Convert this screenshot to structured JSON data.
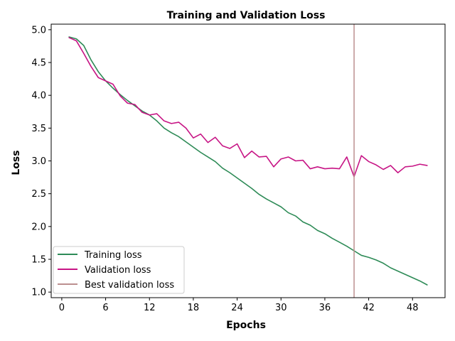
{
  "chart_data": {
    "type": "line",
    "title": "Training and Validation Loss",
    "xlabel": "Epochs",
    "ylabel": "Loss",
    "xlim": [
      -1.45,
      52.45
    ],
    "ylim": [
      0.915,
      5.085
    ],
    "xticks": [
      0,
      6,
      12,
      18,
      24,
      30,
      36,
      42,
      48
    ],
    "xtick_labels": [
      "0",
      "6",
      "12",
      "18",
      "24",
      "30",
      "36",
      "42",
      "48"
    ],
    "yticks": [
      1.0,
      1.5,
      2.0,
      2.5,
      3.0,
      3.5,
      4.0,
      4.5,
      5.0
    ],
    "ytick_labels": [
      "1.0",
      "1.5",
      "2.0",
      "2.5",
      "3.0",
      "3.5",
      "4.0",
      "4.5",
      "5.0"
    ],
    "grid": false,
    "legend_position": "lower-left",
    "x": [
      1,
      2,
      3,
      4,
      5,
      6,
      7,
      8,
      9,
      10,
      11,
      12,
      13,
      14,
      15,
      16,
      17,
      18,
      19,
      20,
      21,
      22,
      23,
      24,
      25,
      26,
      27,
      28,
      29,
      30,
      31,
      32,
      33,
      34,
      35,
      36,
      37,
      38,
      39,
      40,
      41,
      42,
      43,
      44,
      45,
      46,
      47,
      48,
      49,
      50
    ],
    "series": [
      {
        "name": "Training loss",
        "color": "#2e8b57",
        "values": [
          4.89,
          4.86,
          4.76,
          4.54,
          4.36,
          4.22,
          4.11,
          4.01,
          3.92,
          3.84,
          3.76,
          3.7,
          3.61,
          3.5,
          3.43,
          3.37,
          3.29,
          3.21,
          3.13,
          3.06,
          2.99,
          2.89,
          2.82,
          2.74,
          2.66,
          2.58,
          2.49,
          2.42,
          2.36,
          2.3,
          2.21,
          2.16,
          2.07,
          2.02,
          1.94,
          1.89,
          1.82,
          1.76,
          1.7,
          1.63,
          1.56,
          1.53,
          1.49,
          1.44,
          1.37,
          1.32,
          1.27,
          1.22,
          1.17,
          1.11
        ]
      },
      {
        "name": "Validation loss",
        "color": "#c71585",
        "values": [
          4.88,
          4.83,
          4.64,
          4.44,
          4.27,
          4.22,
          4.17,
          3.99,
          3.88,
          3.86,
          3.74,
          3.7,
          3.72,
          3.61,
          3.57,
          3.59,
          3.5,
          3.35,
          3.41,
          3.28,
          3.36,
          3.23,
          3.19,
          3.26,
          3.05,
          3.15,
          3.06,
          3.07,
          2.91,
          3.03,
          3.06,
          3.0,
          3.01,
          2.88,
          2.91,
          2.88,
          2.89,
          2.88,
          3.06,
          2.76,
          3.08,
          2.99,
          2.94,
          2.87,
          2.93,
          2.82,
          2.91,
          2.92,
          2.95,
          2.93
        ]
      }
    ],
    "best_validation": {
      "name": "Best validation loss",
      "epoch": 40,
      "color": "#bc8f8f"
    }
  }
}
